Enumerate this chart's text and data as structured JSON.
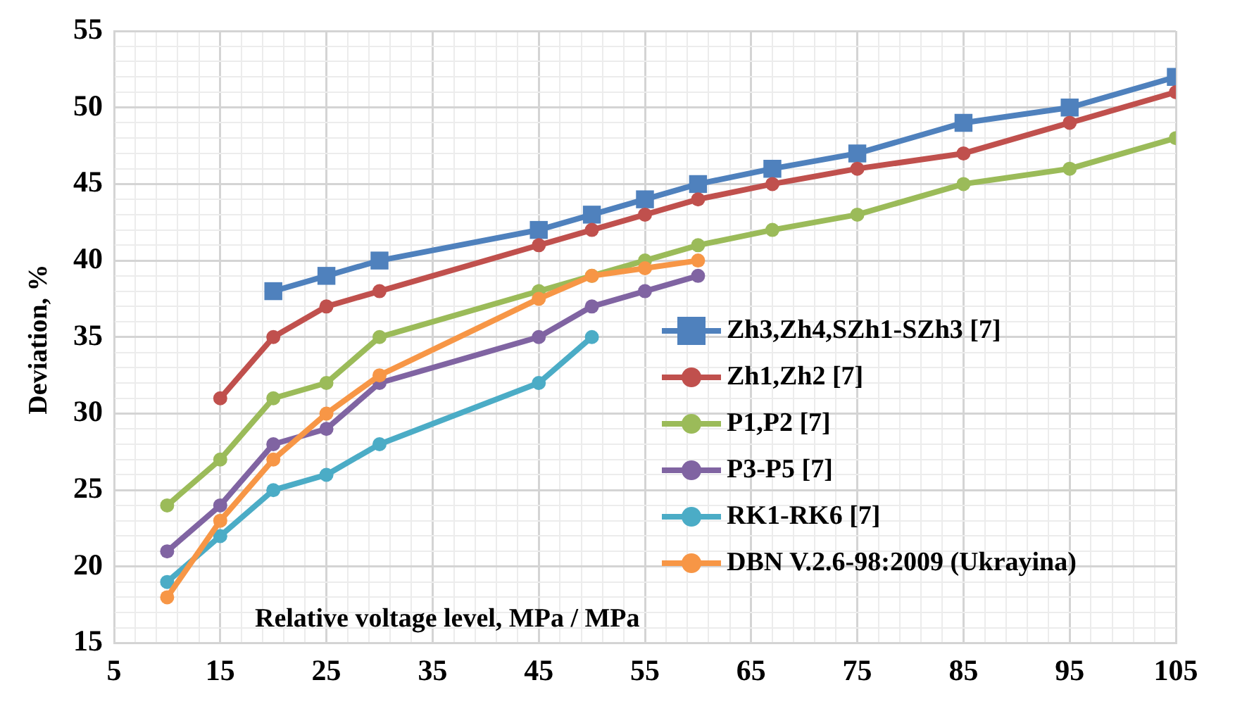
{
  "chart_data": {
    "type": "line",
    "xlabel": "Relative voltage level, MPa / MPa",
    "ylabel": "Deviation, %",
    "xlim": [
      5,
      105
    ],
    "ylim": [
      15,
      55
    ],
    "xticks": [
      5,
      {
        "value": 7,
        "label": null
      },
      {
        "value": 9,
        "label": null
      },
      {
        "value": 11,
        "label": null
      },
      {
        "value": 13,
        "label": null
      },
      15,
      {
        "value": 17,
        "label": null
      },
      {
        "value": 19,
        "label": null
      },
      {
        "value": 21,
        "label": null
      },
      {
        "value": 23,
        "label": null
      },
      25,
      {
        "value": 27,
        "label": null
      },
      {
        "value": 29,
        "label": null
      },
      {
        "value": 31,
        "label": null
      },
      {
        "value": 33,
        "label": null
      },
      35,
      {
        "value": 37,
        "label": null
      },
      {
        "value": 39,
        "label": null
      },
      {
        "value": 41,
        "label": null
      },
      {
        "value": 43,
        "label": null
      },
      45,
      {
        "value": 47,
        "label": null
      },
      {
        "value": 49,
        "label": null
      },
      {
        "value": 51,
        "label": null
      },
      {
        "value": 53,
        "label": null
      },
      55,
      {
        "value": 57,
        "label": null
      },
      {
        "value": 59,
        "label": null
      },
      {
        "value": 61,
        "label": null
      },
      {
        "value": 63,
        "label": null
      },
      65,
      {
        "value": 67,
        "label": null
      },
      {
        "value": 69,
        "label": null
      },
      {
        "value": 71,
        "label": null
      },
      {
        "value": 73,
        "label": null
      },
      75,
      {
        "value": 77,
        "label": null
      },
      {
        "value": 79,
        "label": null
      },
      {
        "value": 81,
        "label": null
      },
      {
        "value": 83,
        "label": null
      },
      85,
      {
        "value": 87,
        "label": null
      },
      {
        "value": 89,
        "label": null
      },
      {
        "value": 91,
        "label": null
      },
      {
        "value": 93,
        "label": null
      },
      95,
      {
        "value": 97,
        "label": null
      },
      {
        "value": 99,
        "label": null
      },
      {
        "value": 101,
        "label": null
      },
      {
        "value": 103,
        "label": null
      },
      105
    ],
    "yticks": [
      15,
      {
        "value": 16,
        "label": null
      },
      {
        "value": 17,
        "label": null
      },
      {
        "value": 18,
        "label": null
      },
      {
        "value": 19,
        "label": null
      },
      20,
      {
        "value": 21,
        "label": null
      },
      {
        "value": 22,
        "label": null
      },
      {
        "value": 23,
        "label": null
      },
      {
        "value": 24,
        "label": null
      },
      25,
      {
        "value": 26,
        "label": null
      },
      {
        "value": 27,
        "label": null
      },
      {
        "value": 28,
        "label": null
      },
      {
        "value": 29,
        "label": null
      },
      30,
      {
        "value": 31,
        "label": null
      },
      {
        "value": 32,
        "label": null
      },
      {
        "value": 33,
        "label": null
      },
      {
        "value": 34,
        "label": null
      },
      35,
      {
        "value": 36,
        "label": null
      },
      {
        "value": 37,
        "label": null
      },
      {
        "value": 38,
        "label": null
      },
      {
        "value": 39,
        "label": null
      },
      40,
      {
        "value": 41,
        "label": null
      },
      {
        "value": 42,
        "label": null
      },
      {
        "value": 43,
        "label": null
      },
      {
        "value": 44,
        "label": null
      },
      45,
      {
        "value": 46,
        "label": null
      },
      {
        "value": 47,
        "label": null
      },
      {
        "value": 48,
        "label": null
      },
      {
        "value": 49,
        "label": null
      },
      50,
      {
        "value": 51,
        "label": null
      },
      {
        "value": 52,
        "label": null
      },
      {
        "value": 53,
        "label": null
      },
      {
        "value": 54,
        "label": null
      },
      55
    ],
    "grid": true,
    "legend": "right",
    "marker": "circle",
    "line_style": "solid",
    "series": [
      {
        "name": "Zh3,Zh4,SZh1-SZh3 [7]",
        "color": "#4f81bd",
        "marker": "square",
        "x": [
          20,
          25,
          30,
          45,
          50,
          55,
          60,
          67,
          75,
          85,
          95,
          105
        ],
        "values": [
          38,
          39,
          40,
          42,
          43,
          44,
          45,
          46,
          47,
          49,
          50,
          52
        ]
      },
      {
        "name": "Zh1,Zh2 [7]",
        "color": "#c0504d",
        "x": [
          15,
          20,
          25,
          30,
          45,
          50,
          55,
          60,
          67,
          75,
          85,
          95,
          105
        ],
        "values": [
          31,
          35,
          37,
          38,
          41,
          42,
          43,
          44,
          45,
          46,
          47,
          49,
          51
        ]
      },
      {
        "name": "P1,P2 [7]",
        "color": "#9bbb59",
        "x": [
          10,
          15,
          20,
          25,
          30,
          45,
          50,
          55,
          60,
          67,
          75,
          85,
          95,
          105
        ],
        "values": [
          24,
          27,
          31,
          32,
          35,
          38,
          39,
          40,
          41,
          42,
          43,
          45,
          46,
          48
        ]
      },
      {
        "name": "P3-P5 [7]",
        "color": "#8064a2",
        "x": [
          10,
          15,
          20,
          25,
          30,
          45,
          50,
          55,
          60
        ],
        "values": [
          21,
          24,
          28,
          29,
          32,
          35,
          37,
          38,
          39
        ]
      },
      {
        "name": "RK1-RK6 [7]",
        "color": "#4bacc6",
        "x": [
          10,
          15,
          20,
          25,
          30,
          45,
          50
        ],
        "values": [
          19,
          22,
          25,
          26,
          28,
          32,
          35
        ]
      },
      {
        "name": "DBN V.2.6-98:2009 (Ukrayina)",
        "color": "#f79646",
        "x": [
          10,
          15,
          20,
          25,
          30,
          45,
          50,
          55,
          60
        ],
        "values": [
          18,
          23,
          27,
          30,
          32.5,
          37.5,
          39,
          39.5,
          40
        ]
      }
    ]
  }
}
